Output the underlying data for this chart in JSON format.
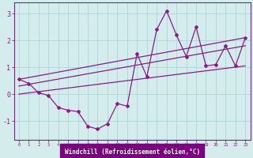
{
  "x": [
    0,
    1,
    2,
    3,
    4,
    5,
    6,
    7,
    8,
    9,
    10,
    11,
    12,
    13,
    14,
    15,
    16,
    17,
    18,
    19,
    20,
    21,
    22,
    23
  ],
  "y_main": [
    0.55,
    0.4,
    0.05,
    -0.05,
    -0.5,
    -0.6,
    -0.65,
    -1.2,
    -1.3,
    -1.1,
    -0.35,
    -0.45,
    1.5,
    0.65,
    2.4,
    3.1,
    2.2,
    1.4,
    2.5,
    1.05,
    1.1,
    1.8,
    1.05,
    2.1
  ],
  "trend_lines": [
    {
      "x": [
        0,
        23
      ],
      "y": [
        0.55,
        2.1
      ]
    },
    {
      "x": [
        0,
        23
      ],
      "y": [
        0.3,
        1.8
      ]
    },
    {
      "x": [
        0,
        23
      ],
      "y": [
        0.0,
        1.05
      ]
    }
  ],
  "color": "#8B1A8B",
  "bg_color": "#d4ecec",
  "grid_color": "#aad8d8",
  "label_bg": "#7B0080",
  "xlabel": "Windchill (Refroidissement éolien,°C)",
  "ylim": [
    -1.7,
    3.4
  ],
  "xlim": [
    -0.5,
    23.5
  ],
  "yticks": [
    -1,
    0,
    1,
    2,
    3
  ],
  "xticks": [
    0,
    1,
    2,
    3,
    4,
    5,
    6,
    7,
    8,
    9,
    10,
    11,
    12,
    13,
    14,
    15,
    16,
    17,
    18,
    19,
    20,
    21,
    22,
    23
  ]
}
